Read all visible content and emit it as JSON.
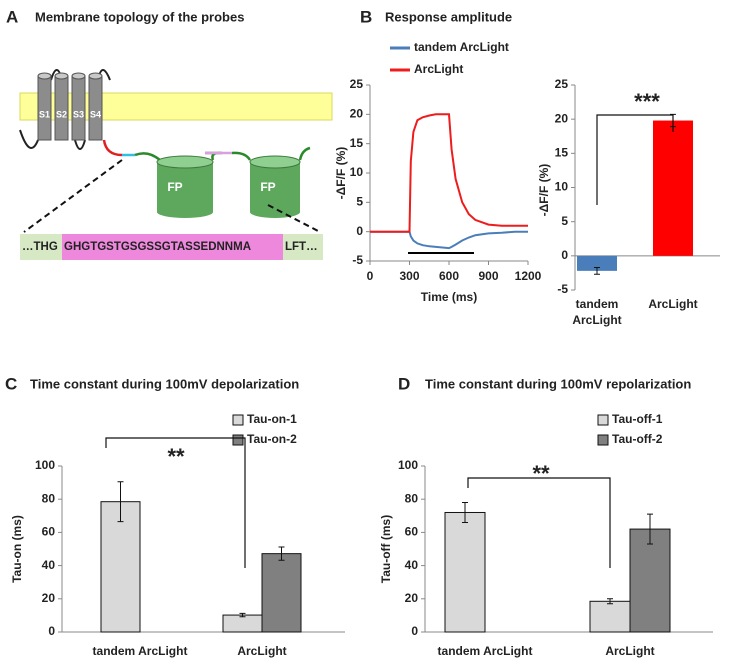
{
  "diagram": {
    "panel_label": "A",
    "title": "Membrane topology of the probes",
    "helices": [
      "S1",
      "S2",
      "S3",
      "S4"
    ],
    "fp": [
      "FP",
      "FP"
    ],
    "sequence": [
      "…THG",
      "GHGTGSTGSGSSGTASSEDNNMA",
      "LFT…"
    ]
  },
  "chart_data": [
    {
      "type": "line",
      "panel_label": "B",
      "title": "Response amplitude",
      "x": [
        0,
        100,
        200,
        300,
        310,
        330,
        360,
        400,
        450,
        500,
        550,
        600,
        620,
        650,
        700,
        750,
        800,
        900,
        1000,
        1100,
        1200
      ],
      "series": [
        {
          "name": "tandem ArcLight",
          "color": "#4a7ebb",
          "values": [
            0,
            0,
            0,
            0,
            -0.8,
            -1.5,
            -2,
            -2.3,
            -2.5,
            -2.6,
            -2.7,
            -2.8,
            -2.6,
            -2.2,
            -1.5,
            -1,
            -0.6,
            -0.3,
            -0.2,
            0,
            0
          ]
        },
        {
          "name": "ArcLight",
          "color": "#ee1c1c",
          "values": [
            0,
            0,
            0,
            0,
            12,
            17,
            19,
            19.5,
            19.8,
            20,
            20,
            20,
            14,
            9,
            5,
            3,
            2,
            1.2,
            1,
            1,
            1
          ]
        }
      ],
      "xlim": [
        0,
        1200
      ],
      "xticks": [
        0,
        300,
        600,
        900,
        1200
      ],
      "ylim": [
        -5,
        25
      ],
      "yticks": [
        -5,
        0,
        5,
        10,
        15,
        20,
        25
      ],
      "xlabel": "Time (ms)",
      "ylabel": "-ΔF/F (%)"
    },
    {
      "type": "bar",
      "categories": [
        "tandem ArcLight",
        "ArcLight"
      ],
      "series": [
        {
          "values": [
            -2.2,
            19.8
          ],
          "errors": [
            0.5,
            0.9
          ],
          "colors": [
            "#4a7ebb",
            "#ff0000"
          ]
        }
      ],
      "ylim": [
        -5,
        25
      ],
      "yticks": [
        -5,
        0,
        5,
        10,
        15,
        20,
        25
      ],
      "ylabel": "-ΔF/F (%)",
      "annotation": "***"
    },
    {
      "type": "bar",
      "panel_label": "C",
      "title": "Time constant during 100mV depolarization",
      "categories": [
        "tandem ArcLight",
        "ArcLight"
      ],
      "series": [
        {
          "name": "Tau-on-1",
          "color": "#d9d9d9",
          "values": [
            78.5,
            10.2
          ],
          "errors": [
            12,
            1
          ]
        },
        {
          "name": "Tau-on-2",
          "color": "#808080",
          "values": [
            null,
            47.2
          ],
          "errors": [
            null,
            4
          ]
        }
      ],
      "ylim": [
        0,
        100
      ],
      "yticks": [
        0,
        20,
        40,
        60,
        80,
        100
      ],
      "ylabel": "Tau-on (ms)",
      "annotation": "**"
    },
    {
      "type": "bar",
      "panel_label": "D",
      "title": "Time constant during 100mV repolarization",
      "categories": [
        "tandem ArcLight",
        "ArcLight"
      ],
      "series": [
        {
          "name": "Tau-off-1",
          "color": "#d9d9d9",
          "values": [
            72,
            18.5
          ],
          "errors": [
            6,
            1.5
          ]
        },
        {
          "name": "Tau-off-2",
          "color": "#808080",
          "values": [
            null,
            62
          ],
          "errors": [
            null,
            9
          ]
        }
      ],
      "ylim": [
        0,
        100
      ],
      "yticks": [
        0,
        20,
        40,
        60,
        80,
        100
      ],
      "ylabel": "Tau-off (ms)",
      "annotation": "**"
    }
  ]
}
